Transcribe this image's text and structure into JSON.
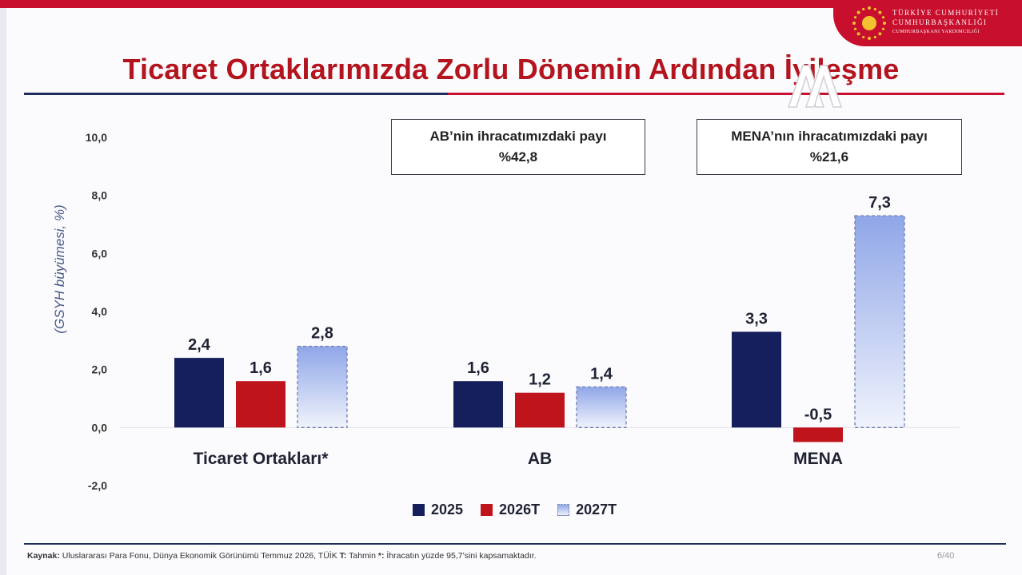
{
  "header": {
    "emblem_line1": "TÜRKİYE  CUMHURİYETİ",
    "emblem_line2": "CUMHURBAŞKANLIĞI",
    "emblem_line3": "CUMHURBAŞKANI YARDIMCILIĞI"
  },
  "title": "Ticaret Ortaklarımızda Zorlu Dönemin Ardından İyileşme",
  "infoboxes": [
    {
      "line1": "AB’nin ihracatımızdaki payı",
      "line2": "%42,8"
    },
    {
      "line1": "MENA’nın ihracatımızdaki payı",
      "line2": "%21,6"
    }
  ],
  "chart_data": {
    "type": "bar",
    "ylabel": "(GSYH büyümesi, %)",
    "ylim": [
      -2.0,
      10.0
    ],
    "yticks": [
      "10,0",
      "8,0",
      "6,0",
      "4,0",
      "2,0",
      "0,0",
      "-2,0"
    ],
    "ytick_values": [
      10,
      8,
      6,
      4,
      2,
      0,
      -2
    ],
    "categories": [
      "Ticaret Ortakları*",
      "AB",
      "MENA"
    ],
    "series": [
      {
        "name": "2025",
        "values": [
          2.4,
          1.6,
          3.3
        ],
        "labels": [
          "2,4",
          "1,6",
          "3,3"
        ],
        "color": "#141f5c",
        "style": "solid"
      },
      {
        "name": "2026T",
        "values": [
          1.6,
          1.2,
          -0.5
        ],
        "labels": [
          "1,6",
          "1,2",
          "-0,5"
        ],
        "color": "#c0141c",
        "style": "solid"
      },
      {
        "name": "2027T",
        "values": [
          2.8,
          1.4,
          7.3
        ],
        "labels": [
          "2,8",
          "1,4",
          "7,3"
        ],
        "color": "#8fa6e8",
        "style": "gradient-dashed"
      }
    ],
    "grid": false,
    "legend": "bottom-center"
  },
  "footer": {
    "source_label": "Kaynak:",
    "source_text": " Uluslararası Para Fonu, Dünya Ekonomik Görünümü Temmuz 2026, TÜİK ",
    "t_label": "T:",
    "t_text": " Tahmin ",
    "star_label": "*:",
    "star_text": " İhracatın yüzde 95,7’sini kapsamaktadır."
  },
  "page_number": "6/40"
}
